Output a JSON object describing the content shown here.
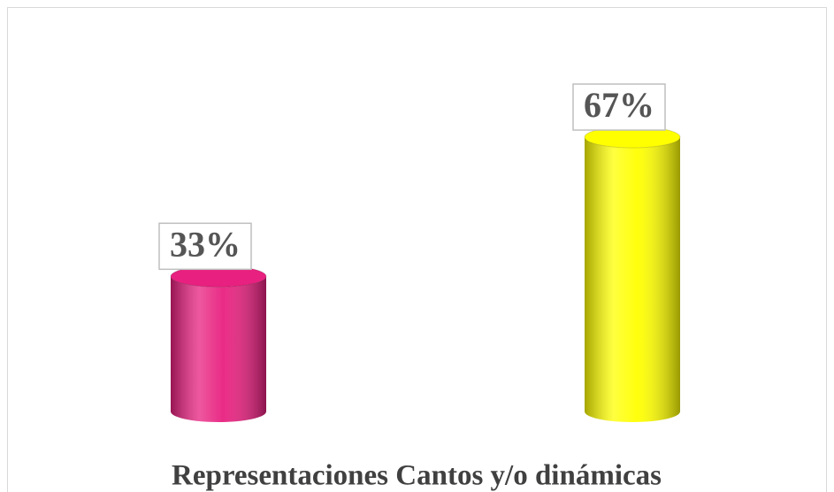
{
  "chart_data": {
    "type": "bar",
    "title": "Representaciones Cantos y/o dinámicas",
    "categories": [
      null,
      null
    ],
    "values": [
      33,
      67
    ],
    "value_labels": [
      "33%",
      "67%"
    ],
    "colors": [
      "#e8207f",
      "#ffff00"
    ]
  }
}
